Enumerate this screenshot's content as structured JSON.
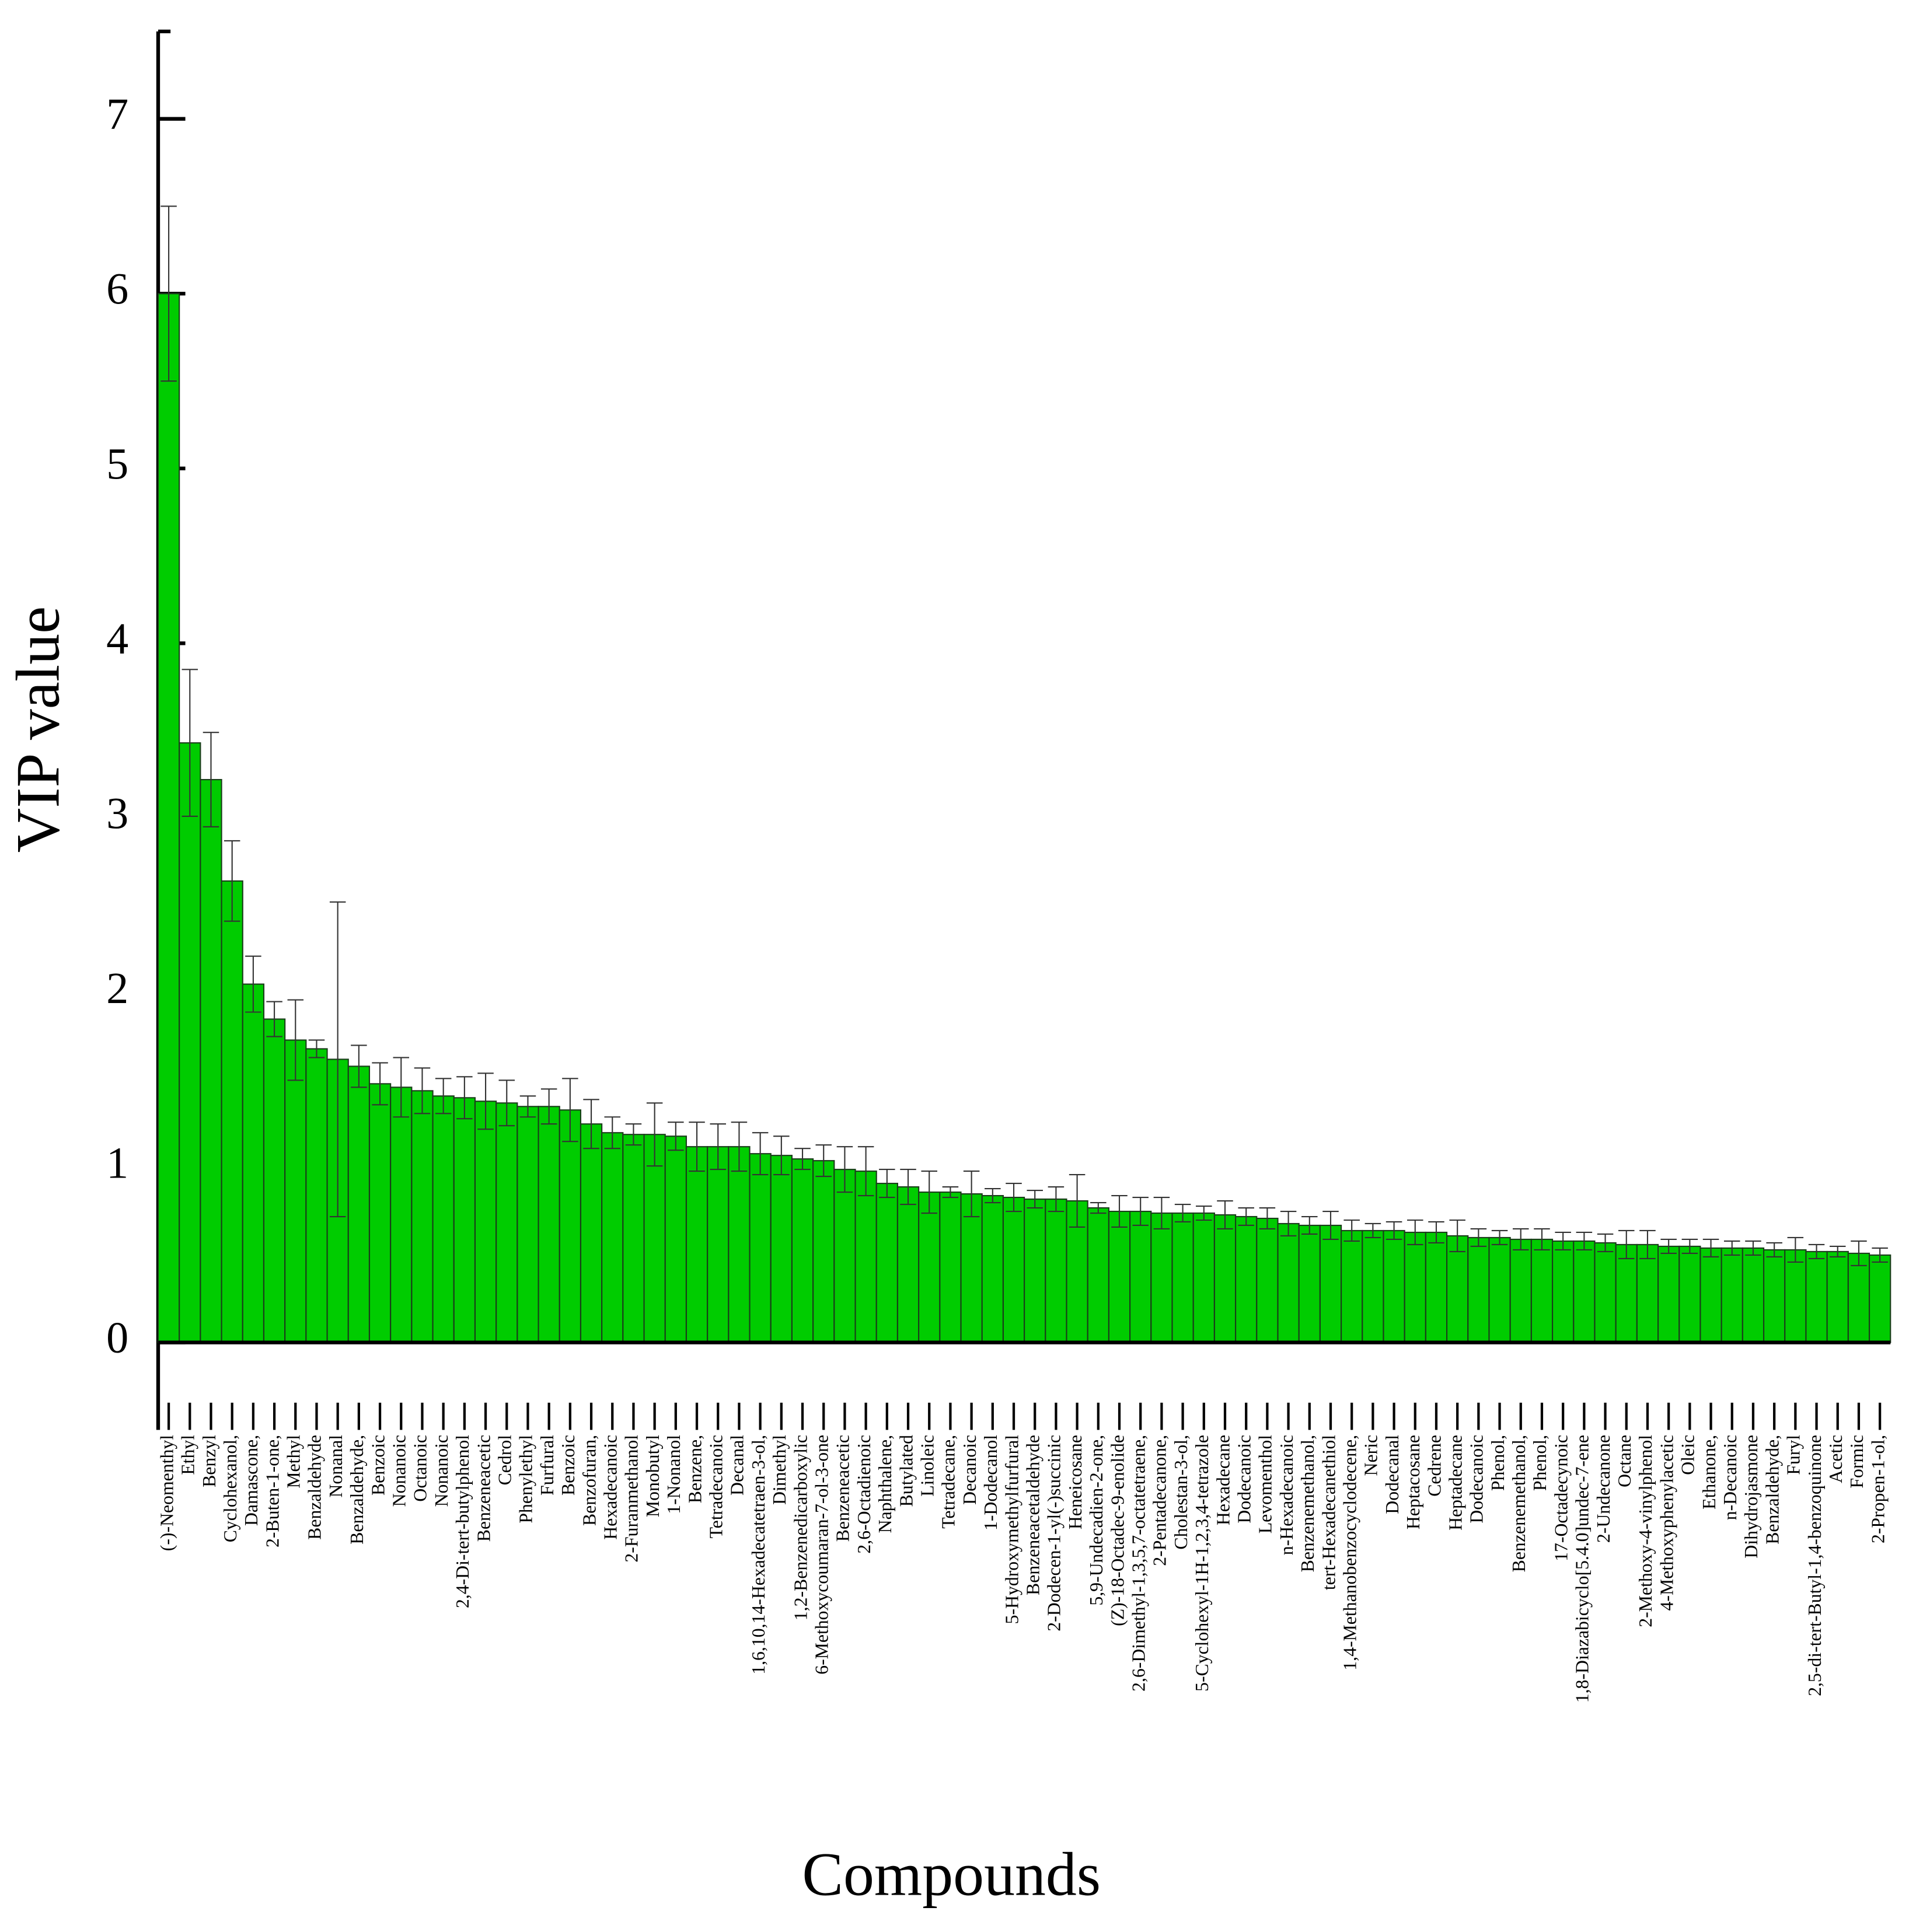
{
  "chart_data": {
    "type": "bar",
    "xlabel": "Compounds",
    "ylabel": "VIP value",
    "categories": [
      "(-)-Neomenthyl",
      "Ethyl",
      "Benzyl",
      "Cyclohexanol,",
      "Damascone,",
      "2-Buten-1-one,",
      "Methyl",
      "Benzaldehyde",
      "Nonanal",
      "Benzaldehyde,",
      "Benzoic",
      "Nonanoic",
      "Octanoic",
      "Nonanoic",
      "2,4-Di-tert-butylphenol",
      "Benzeneacetic",
      "Cedrol",
      "Phenylethyl",
      "Furfural",
      "Benzoic",
      "Benzofuran,",
      "Hexadecanoic",
      "2-Furanmethanol",
      "Monobutyl",
      "1-Nonanol",
      "Benzene,",
      "Tetradecanoic",
      "Decanal",
      "1,6,10,14-Hexadecatetraen-3-ol,",
      "Dimethyl",
      "1,2-Benzenedicarboxylic",
      "6-Methoxycoumaran-7-ol-3-one",
      "Benzeneacetic",
      "2,6-Octadienoic",
      "Naphthalene,",
      "Butylated",
      "Linoleic",
      "Tetradecane,",
      "Decanoic",
      "1-Dodecanol",
      "5-Hydroxymethylfurfural",
      "Benzeneacetaldehyde",
      "2-Dodecen-1-yl(-)succinic",
      "Heneicosane",
      "5,9-Undecadien-2-one,",
      "(Z)-18-Octadec-9-enolide",
      "2,6-Dimethyl-1,3,5,7-octatetraene,",
      "2-Pentadecanone,",
      "Cholestan-3-ol,",
      "5-Cyclohexyl-1H-1,2,3,4-tetrazole",
      "Hexadecane",
      "Dodecanoic",
      "Levomenthol",
      "n-Hexadecanoic",
      "Benzenemethanol,",
      "tert-Hexadecanethiol",
      "1,4-Methanobenzocyclodecene,",
      "Neric",
      "Dodecanal",
      "Heptacosane",
      "Cedrene",
      "Heptadecane",
      "Dodecanoic",
      "Phenol,",
      "Benzenemethanol,",
      "Phenol,",
      "17-Octadecynoic",
      "1,8-Diazabicyclo[5.4.0]undec-7-ene",
      "2-Undecanone",
      "Octane",
      "2-Methoxy-4-vinylphenol",
      "4-Methoxyphenylacetic",
      "Oleic",
      "Ethanone,",
      "n-Decanoic",
      "Dihydrojasmone",
      "Benzaldehyde,",
      "Furyl",
      "2,5-di-tert-Butyl-1,4-benzoquinone",
      "Acetic",
      "Formic",
      "2-Propen-1-ol,"
    ],
    "values": [
      6.0,
      3.43,
      3.22,
      2.64,
      2.05,
      1.85,
      1.73,
      1.68,
      1.62,
      1.58,
      1.48,
      1.46,
      1.44,
      1.41,
      1.4,
      1.38,
      1.37,
      1.35,
      1.35,
      1.33,
      1.25,
      1.2,
      1.19,
      1.19,
      1.18,
      1.12,
      1.12,
      1.12,
      1.08,
      1.07,
      1.05,
      1.04,
      0.99,
      0.98,
      0.91,
      0.89,
      0.86,
      0.86,
      0.85,
      0.84,
      0.83,
      0.82,
      0.82,
      0.81,
      0.77,
      0.75,
      0.75,
      0.74,
      0.74,
      0.74,
      0.73,
      0.72,
      0.71,
      0.68,
      0.67,
      0.67,
      0.64,
      0.64,
      0.64,
      0.63,
      0.63,
      0.61,
      0.6,
      0.6,
      0.59,
      0.59,
      0.58,
      0.58,
      0.57,
      0.56,
      0.56,
      0.55,
      0.55,
      0.54,
      0.54,
      0.54,
      0.53,
      0.53,
      0.52,
      0.52,
      0.51,
      0.5
    ],
    "errors": [
      0.5,
      0.42,
      0.27,
      0.23,
      0.16,
      0.1,
      0.23,
      0.05,
      0.9,
      0.12,
      0.12,
      0.17,
      0.13,
      0.1,
      0.12,
      0.16,
      0.13,
      0.06,
      0.1,
      0.18,
      0.14,
      0.09,
      0.06,
      0.18,
      0.08,
      0.14,
      0.13,
      0.14,
      0.12,
      0.11,
      0.06,
      0.09,
      0.13,
      0.14,
      0.08,
      0.1,
      0.12,
      0.03,
      0.13,
      0.04,
      0.08,
      0.05,
      0.07,
      0.15,
      0.03,
      0.09,
      0.08,
      0.09,
      0.05,
      0.04,
      0.08,
      0.05,
      0.06,
      0.07,
      0.05,
      0.08,
      0.06,
      0.04,
      0.05,
      0.07,
      0.06,
      0.09,
      0.05,
      0.04,
      0.06,
      0.06,
      0.05,
      0.05,
      0.05,
      0.08,
      0.08,
      0.04,
      0.04,
      0.05,
      0.04,
      0.04,
      0.04,
      0.07,
      0.04,
      0.03,
      0.07,
      0.04
    ],
    "color": "#00cc00",
    "ylim": [
      -0.5,
      7.5
    ],
    "yticks": [
      0,
      1,
      2,
      3,
      4,
      5,
      6,
      7
    ],
    "grid": false
  }
}
